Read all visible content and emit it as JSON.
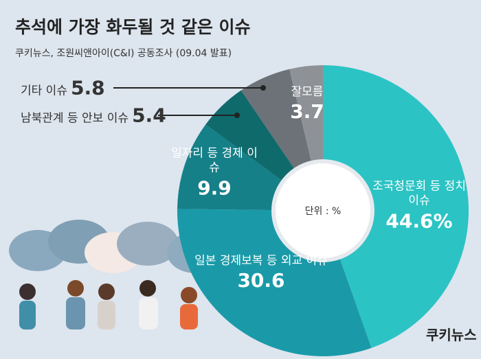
{
  "chart_data": {
    "type": "donut",
    "title": "추석에 가장 화두될 것 같은 이슈",
    "subtitle": "쿠키뉴스, 조원씨앤아이(C&I) 공동조사 (09.04 발표)",
    "center_label": "단위 : %",
    "logo": "쿠키뉴스",
    "categories": [
      "조국청문회 등 정치 이슈",
      "일본 경제보복 등 외교 이슈",
      "일자리 등 경제 이슈",
      "남북관계 등 안보 이슈",
      "기타 이슈",
      "잘모름"
    ],
    "values": [
      44.6,
      30.6,
      9.9,
      5.4,
      5.8,
      3.7
    ],
    "value_labels": [
      "44.6%",
      "30.6",
      "9.9",
      "5.4",
      "5.8",
      "3.7"
    ],
    "colors": [
      "#2cc3c4",
      "#1a9aa8",
      "#168089",
      "#0f6a6c",
      "#6c7278",
      "#8e9297"
    ]
  }
}
